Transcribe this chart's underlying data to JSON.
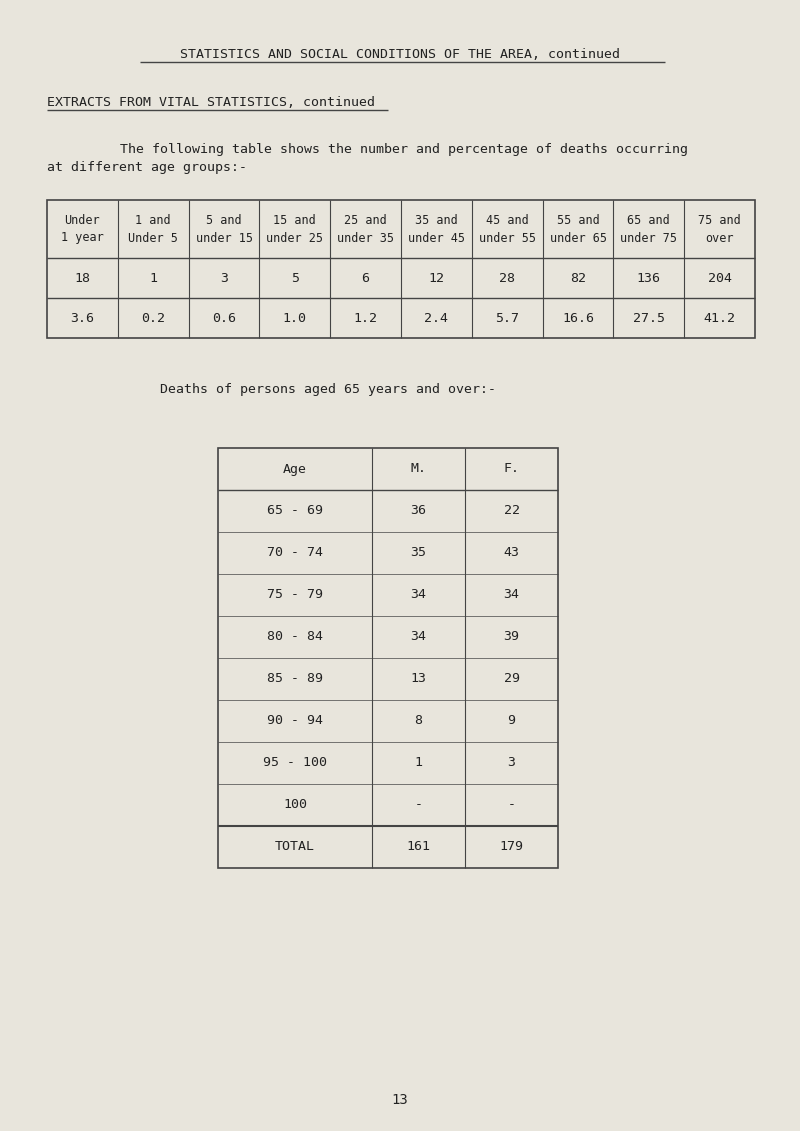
{
  "page_bg": "#e8e5dc",
  "header_title": "STATISTICS AND SOCIAL CONDITIONS OF THE AREA, continued",
  "section_title": "EXTRACTS FROM VITAL STATISTICS, continued",
  "intro_text_line1": "The following table shows the number and percentage of deaths occurring",
  "intro_text_line2": "at different age groups:-",
  "table1_headers": [
    "Under\n1 year",
    "1 and\nUnder 5",
    "5 and\nunder 15",
    "15 and\nunder 25",
    "25 and\nunder 35",
    "35 and\nunder 45",
    "45 and\nunder 55",
    "55 and\nunder 65",
    "65 and\nunder 75",
    "75 and\nover"
  ],
  "table1_row1": [
    "18",
    "1",
    "3",
    "5",
    "6",
    "12",
    "28",
    "82",
    "136",
    "204"
  ],
  "table1_row2": [
    "3.6",
    "0.2",
    "0.6",
    "1.0",
    "1.2",
    "2.4",
    "5.7",
    "16.6",
    "27.5",
    "41.2"
  ],
  "table2_caption": "Deaths of persons aged 65 years and over:-",
  "table2_headers": [
    "Age",
    "M.",
    "F."
  ],
  "table2_rows": [
    [
      "65 - 69",
      "36",
      "22"
    ],
    [
      "70 - 74",
      "35",
      "43"
    ],
    [
      "75 - 79",
      "34",
      "34"
    ],
    [
      "80 - 84",
      "34",
      "39"
    ],
    [
      "85 - 89",
      "13",
      "29"
    ],
    [
      "90 - 94",
      "8",
      "9"
    ],
    [
      "95 - 100",
      "1",
      "3"
    ],
    [
      "100",
      "-",
      "-"
    ]
  ],
  "table2_total_row": [
    "TOTAL",
    "161",
    "179"
  ],
  "page_number": "13",
  "font_color": "#222222",
  "line_color": "#444444"
}
